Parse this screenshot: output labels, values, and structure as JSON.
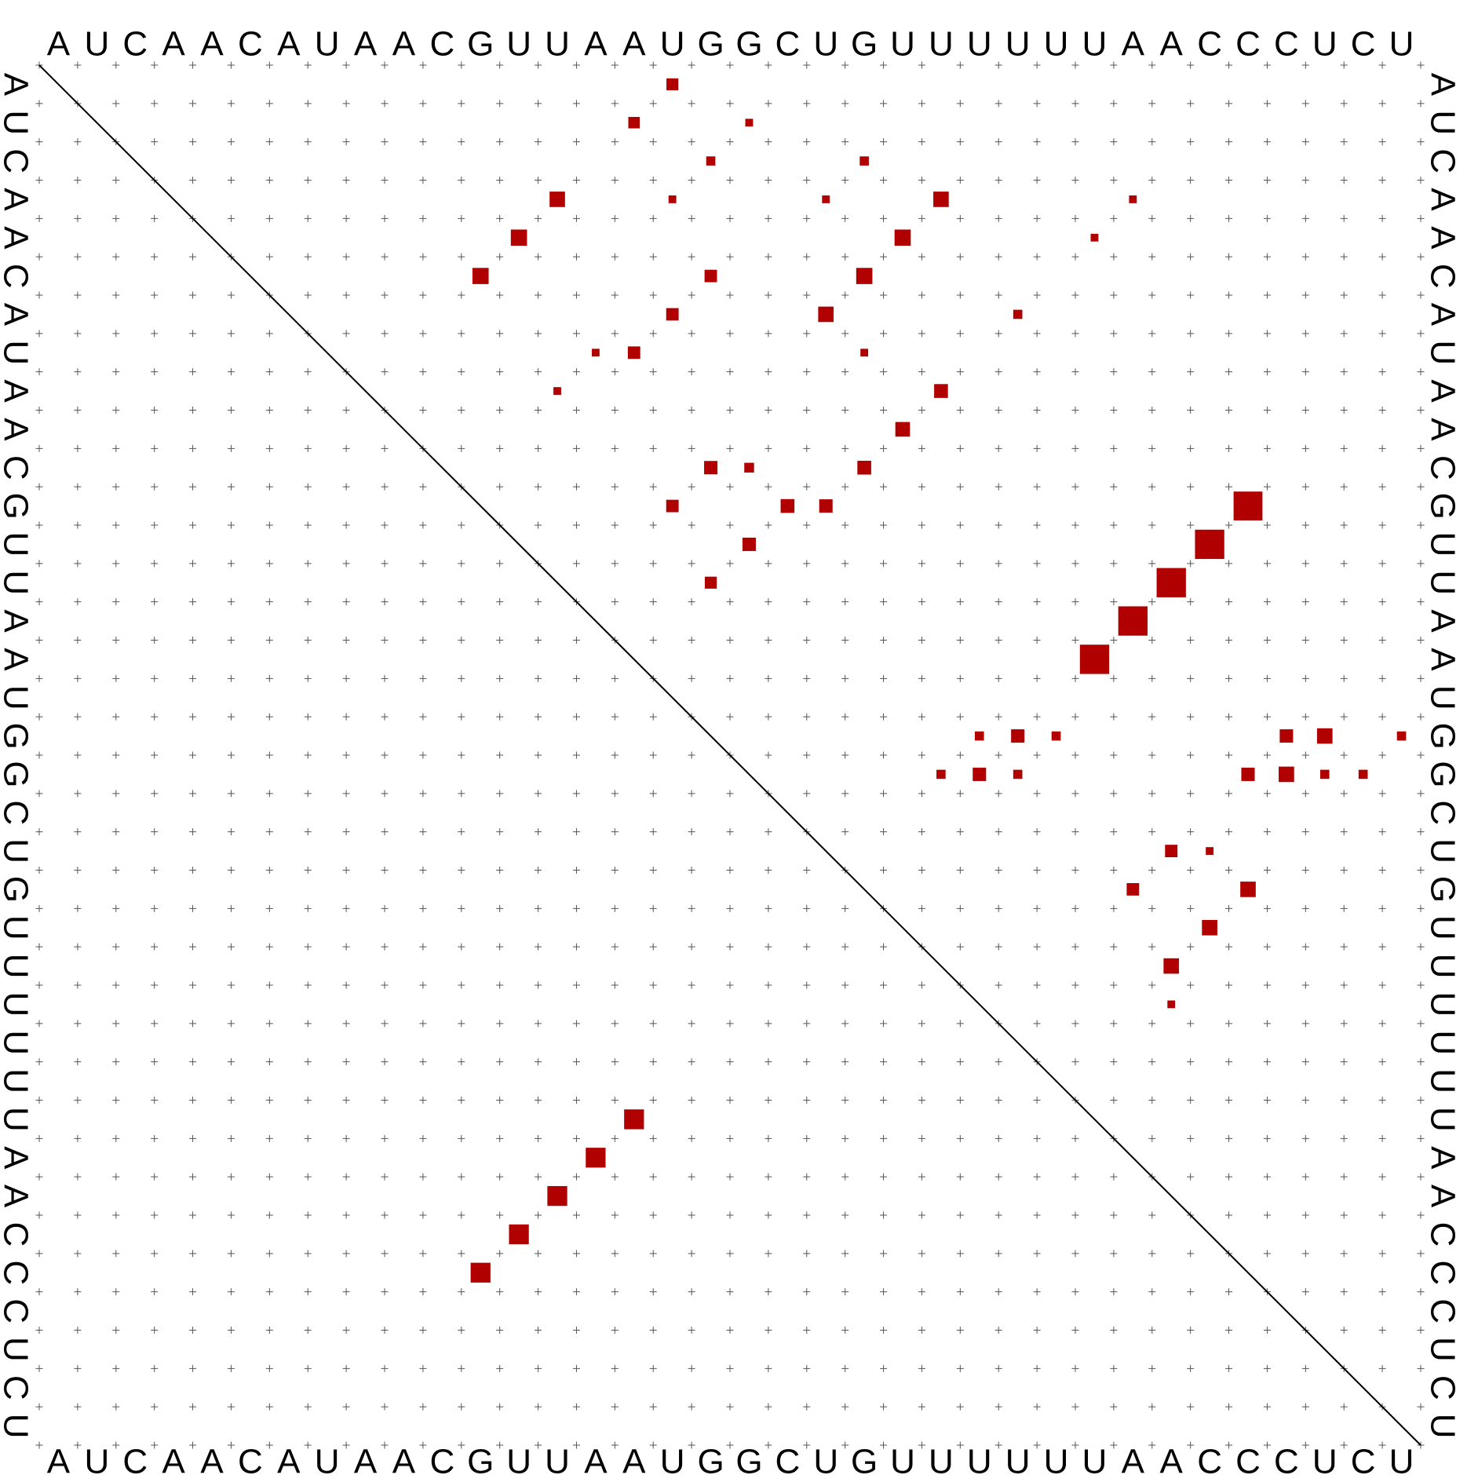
{
  "sequence": [
    "A",
    "U",
    "C",
    "A",
    "A",
    "C",
    "A",
    "U",
    "A",
    "A",
    "C",
    "G",
    "U",
    "U",
    "A",
    "A",
    "U",
    "G",
    "G",
    "C",
    "U",
    "G",
    "U",
    "U",
    "U",
    "U",
    "U",
    "U",
    "A",
    "A",
    "C",
    "C",
    "C",
    "U",
    "C",
    "U"
  ],
  "colors": {
    "dot": "#b00000",
    "grid": "#555555",
    "frame": "#000000",
    "text": "#000000"
  },
  "dot_plot": {
    "upper_triangle_probabilities": [
      {
        "i": 1,
        "j": 17,
        "p": 0.12
      },
      {
        "i": 2,
        "j": 16,
        "p": 0.11
      },
      {
        "i": 2,
        "j": 19,
        "p": 0.05
      },
      {
        "i": 3,
        "j": 18,
        "p": 0.07
      },
      {
        "i": 3,
        "j": 22,
        "p": 0.07
      },
      {
        "i": 4,
        "j": 14,
        "p": 0.2
      },
      {
        "i": 4,
        "j": 17,
        "p": 0.05
      },
      {
        "i": 4,
        "j": 21,
        "p": 0.05
      },
      {
        "i": 4,
        "j": 24,
        "p": 0.2
      },
      {
        "i": 4,
        "j": 29,
        "p": 0.05
      },
      {
        "i": 5,
        "j": 13,
        "p": 0.22
      },
      {
        "i": 5,
        "j": 23,
        "p": 0.22
      },
      {
        "i": 5,
        "j": 28,
        "p": 0.05
      },
      {
        "i": 6,
        "j": 12,
        "p": 0.22
      },
      {
        "i": 6,
        "j": 18,
        "p": 0.13
      },
      {
        "i": 6,
        "j": 22,
        "p": 0.22
      },
      {
        "i": 7,
        "j": 17,
        "p": 0.13
      },
      {
        "i": 7,
        "j": 21,
        "p": 0.2
      },
      {
        "i": 7,
        "j": 26,
        "p": 0.07
      },
      {
        "i": 8,
        "j": 16,
        "p": 0.13
      },
      {
        "i": 8,
        "j": 15,
        "p": 0.05
      },
      {
        "i": 8,
        "j": 22,
        "p": 0.05
      },
      {
        "i": 9,
        "j": 24,
        "p": 0.16
      },
      {
        "i": 9,
        "j": 14,
        "p": 0.05
      },
      {
        "i": 10,
        "j": 23,
        "p": 0.18
      },
      {
        "i": 11,
        "j": 18,
        "p": 0.15
      },
      {
        "i": 11,
        "j": 19,
        "p": 0.08
      },
      {
        "i": 11,
        "j": 22,
        "p": 0.16
      },
      {
        "i": 12,
        "j": 17,
        "p": 0.13
      },
      {
        "i": 12,
        "j": 20,
        "p": 0.16
      },
      {
        "i": 12,
        "j": 21,
        "p": 0.15
      },
      {
        "i": 12,
        "j": 32,
        "p": 0.7
      },
      {
        "i": 13,
        "j": 19,
        "p": 0.15
      },
      {
        "i": 13,
        "j": 31,
        "p": 0.72
      },
      {
        "i": 14,
        "j": 18,
        "p": 0.12
      },
      {
        "i": 14,
        "j": 30,
        "p": 0.72
      },
      {
        "i": 15,
        "j": 29,
        "p": 0.72
      },
      {
        "i": 16,
        "j": 28,
        "p": 0.72
      },
      {
        "i": 18,
        "j": 25,
        "p": 0.07
      },
      {
        "i": 18,
        "j": 26,
        "p": 0.15
      },
      {
        "i": 18,
        "j": 27,
        "p": 0.07
      },
      {
        "i": 18,
        "j": 33,
        "p": 0.15
      },
      {
        "i": 18,
        "j": 34,
        "p": 0.2
      },
      {
        "i": 18,
        "j": 36,
        "p": 0.07
      },
      {
        "i": 19,
        "j": 24,
        "p": 0.07
      },
      {
        "i": 19,
        "j": 25,
        "p": 0.15
      },
      {
        "i": 19,
        "j": 26,
        "p": 0.07
      },
      {
        "i": 19,
        "j": 32,
        "p": 0.15
      },
      {
        "i": 19,
        "j": 33,
        "p": 0.2
      },
      {
        "i": 19,
        "j": 34,
        "p": 0.07
      },
      {
        "i": 19,
        "j": 35,
        "p": 0.07
      },
      {
        "i": 21,
        "j": 30,
        "p": 0.13
      },
      {
        "i": 21,
        "j": 31,
        "p": 0.05
      },
      {
        "i": 22,
        "j": 29,
        "p": 0.13
      },
      {
        "i": 22,
        "j": 32,
        "p": 0.2
      },
      {
        "i": 23,
        "j": 31,
        "p": 0.2
      },
      {
        "i": 24,
        "j": 30,
        "p": 0.2
      },
      {
        "i": 25,
        "j": 30,
        "p": 0.05
      }
    ],
    "lower_triangle_mfe_pairs": [
      {
        "i": 12,
        "j": 32
      },
      {
        "i": 13,
        "j": 31
      },
      {
        "i": 14,
        "j": 30
      },
      {
        "i": 15,
        "j": 29
      },
      {
        "i": 16,
        "j": 28
      }
    ]
  }
}
